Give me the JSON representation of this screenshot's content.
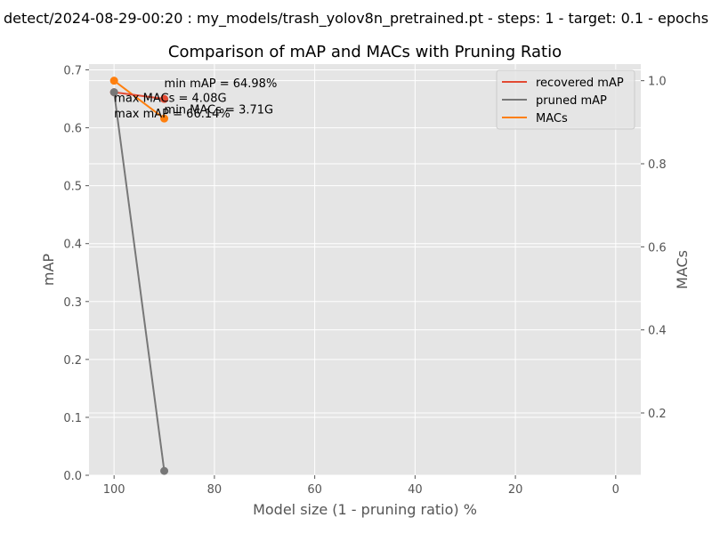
{
  "figure": {
    "suptitle": "detect/2024-08-29-00:20 : my_models/trash_yolov8n_pretrained.pt - steps: 1 - target: 0.1 - epochs",
    "background": "#ffffff"
  },
  "chart_data": {
    "type": "line",
    "title": "Comparison of mAP and MACs with Pruning Ratio",
    "xlabel": "Model size (1 - pruning ratio) %",
    "ylabel": "mAP",
    "y2label": "MACs",
    "xlim": [
      105,
      -5
    ],
    "xticks": [
      100,
      80,
      60,
      40,
      20,
      0
    ],
    "ylim": [
      0,
      0.71
    ],
    "yticks": [
      0.0,
      0.1,
      0.2,
      0.3,
      0.4,
      0.5,
      0.6,
      0.7
    ],
    "y2lim": [
      0.05,
      1.04
    ],
    "y2ticks": [
      0.2,
      0.4,
      0.6,
      0.8,
      1.0
    ],
    "grid": true,
    "plot_background": "#e5e5e5",
    "legend_position": "upper right",
    "series": [
      {
        "name": "recovered mAP",
        "axis": "left",
        "color": "#e24a33",
        "x": [
          100,
          90
        ],
        "y": [
          0.6614,
          0.6498
        ]
      },
      {
        "name": "pruned mAP",
        "axis": "left",
        "color": "#777777",
        "x": [
          100,
          90
        ],
        "y": [
          0.6614,
          0.0075
        ]
      },
      {
        "name": "MACs",
        "axis": "right",
        "color": "#ff7f0e",
        "x": [
          100,
          90
        ],
        "y": [
          1.0,
          0.909
        ]
      }
    ],
    "annotations": [
      {
        "text": "min mAP = 64.98%",
        "axis": "left",
        "x": 90,
        "y": 0.6498
      },
      {
        "text": "max MACs = 4.08G",
        "axis": "left",
        "x": 100,
        "y": 0.6245
      },
      {
        "text": "min MACs = 3.71G",
        "axis": "left",
        "x": 90,
        "y": 0.6045
      },
      {
        "text": "max mAP = 66.14%",
        "axis": "left",
        "x": 100,
        "y": 0.598
      }
    ]
  }
}
